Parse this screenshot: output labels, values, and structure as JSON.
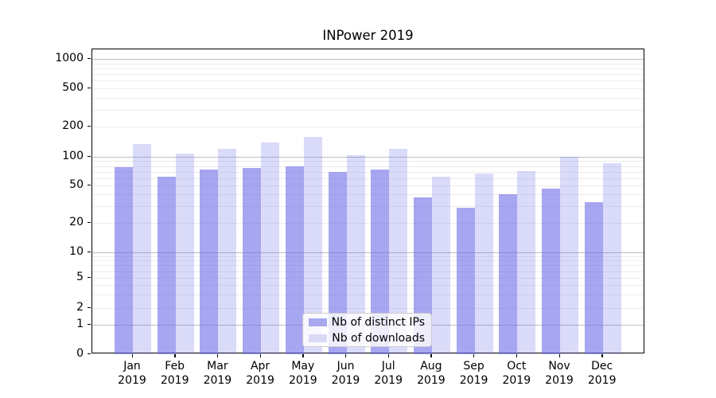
{
  "title": "INPower 2019",
  "legend": {
    "items": [
      {
        "label": "Nb of distinct IPs",
        "swatch_color": "#a8a8ef"
      },
      {
        "label": "Nb of downloads",
        "swatch_color": "#dadaf7"
      }
    ]
  },
  "y_axis": {
    "tick_labels": [
      "1000",
      "500",
      "200",
      "100",
      "50",
      "20",
      "10",
      "5",
      "2",
      "1",
      "0"
    ],
    "tick_values": [
      1000,
      500,
      200,
      100,
      50,
      20,
      10,
      5,
      2,
      1,
      0
    ]
  },
  "x_axis": {
    "year": "2019"
  },
  "colors": {
    "bar_distinct_ips": "rgba(112,112,232,0.62)",
    "bar_downloads": "rgba(112,112,232,0.26)",
    "grid_major": "#bdbdbd",
    "grid_minor": "#ececec"
  },
  "chart_data": {
    "type": "bar",
    "title": "INPower 2019",
    "categories": [
      "Jan",
      "Feb",
      "Mar",
      "Apr",
      "May",
      "Jun",
      "Jul",
      "Aug",
      "Sep",
      "Oct",
      "Nov",
      "Dec"
    ],
    "category_year": "2019",
    "series": [
      {
        "name": "Nb of distinct IPs",
        "values": [
          78,
          62,
          73,
          77,
          80,
          70,
          73,
          37,
          29,
          40,
          46,
          33
        ]
      },
      {
        "name": "Nb of downloads",
        "values": [
          135,
          108,
          120,
          140,
          158,
          104,
          120,
          62,
          67,
          71,
          100,
          85
        ]
      }
    ],
    "xlabel": "",
    "ylabel": "",
    "yscale": "symlog",
    "ylim": [
      0,
      1250
    ],
    "grid": true,
    "legend_position": "lower center"
  }
}
